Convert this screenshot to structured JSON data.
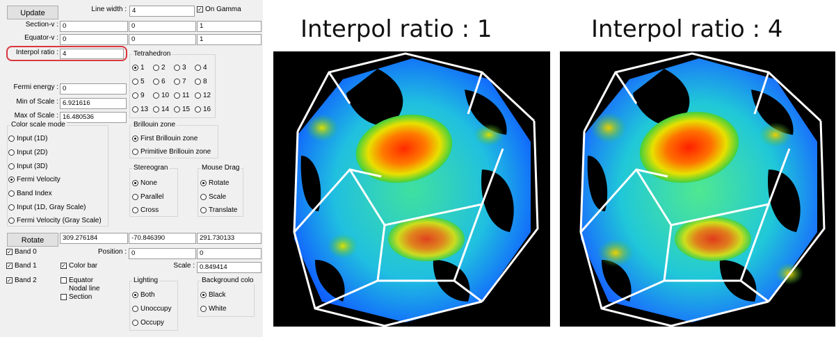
{
  "panel": {
    "update_button": "Update",
    "line_width_label": "Line width :",
    "line_width_value": "4",
    "on_gamma_label": "On Gamma",
    "section_v_label": "Section-v :",
    "section_v": [
      "0",
      "0",
      "1"
    ],
    "equator_v_label": "Equator-v :",
    "equator_v": [
      "0",
      "0",
      "1"
    ],
    "interpol_label": "Interpol ratio :",
    "interpol_value": "4",
    "fermi_label": "Fermi energy :",
    "fermi_value": "0",
    "min_scale_label": "Min of Scale :",
    "min_scale_value": "6.921616",
    "max_scale_label": "Max of Scale :",
    "max_scale_value": "16.480536",
    "tetrahedron": {
      "title": "Tetrahedron",
      "options": [
        "1",
        "2",
        "3",
        "4",
        "5",
        "6",
        "7",
        "8",
        "9",
        "10",
        "11",
        "12",
        "13",
        "14",
        "15",
        "16"
      ],
      "selected": "1"
    },
    "color_scale": {
      "title": "Color scale mode",
      "options": [
        "Input (1D)",
        "Input (2D)",
        "Input (3D)",
        "Fermi Velocity",
        "Band Index",
        "Input (1D, Gray Scale)",
        "Fermi Velocity (Gray Scale)"
      ],
      "selected": "Fermi Velocity"
    },
    "brillouin": {
      "title": "Brillouin zone",
      "options": [
        "First Brillouin zone",
        "Primitive Brillouin zone"
      ],
      "selected": "First Brillouin zone"
    },
    "stereogram": {
      "title": "Stereogran",
      "options": [
        "None",
        "Parallel",
        "Cross"
      ],
      "selected": "None"
    },
    "mouse_drag": {
      "title": "Mouse Drag",
      "options": [
        "Rotate",
        "Scale",
        "Translate"
      ],
      "selected": "Rotate"
    },
    "rotate_button": "Rotate",
    "rotate_values": [
      "309.276184",
      "-70.846390",
      "291.730133"
    ],
    "position_label": "Position :",
    "position_values": [
      "0",
      "0"
    ],
    "scale_label": "Scale :",
    "scale_value": "0.849414",
    "bands": [
      "Band 0",
      "Band 1",
      "Band 2"
    ],
    "color_bar": "Color bar",
    "equator": "Equator",
    "nodal_line": "Nodal line",
    "section": "Section",
    "lighting": {
      "title": "Lighting",
      "options": [
        "Both",
        "Unoccupy",
        "Occupy"
      ],
      "selected": "Both"
    },
    "background": {
      "title": "Background colo",
      "options": [
        "Black",
        "White"
      ],
      "selected": "Black"
    }
  },
  "views": [
    {
      "title": "Interpol ratio : 1"
    },
    {
      "title": "Interpol ratio : 4"
    }
  ],
  "colors": {
    "highlight": "#d9363e",
    "panel_bg": "#f0f0f0",
    "view_bg": "#000000"
  }
}
